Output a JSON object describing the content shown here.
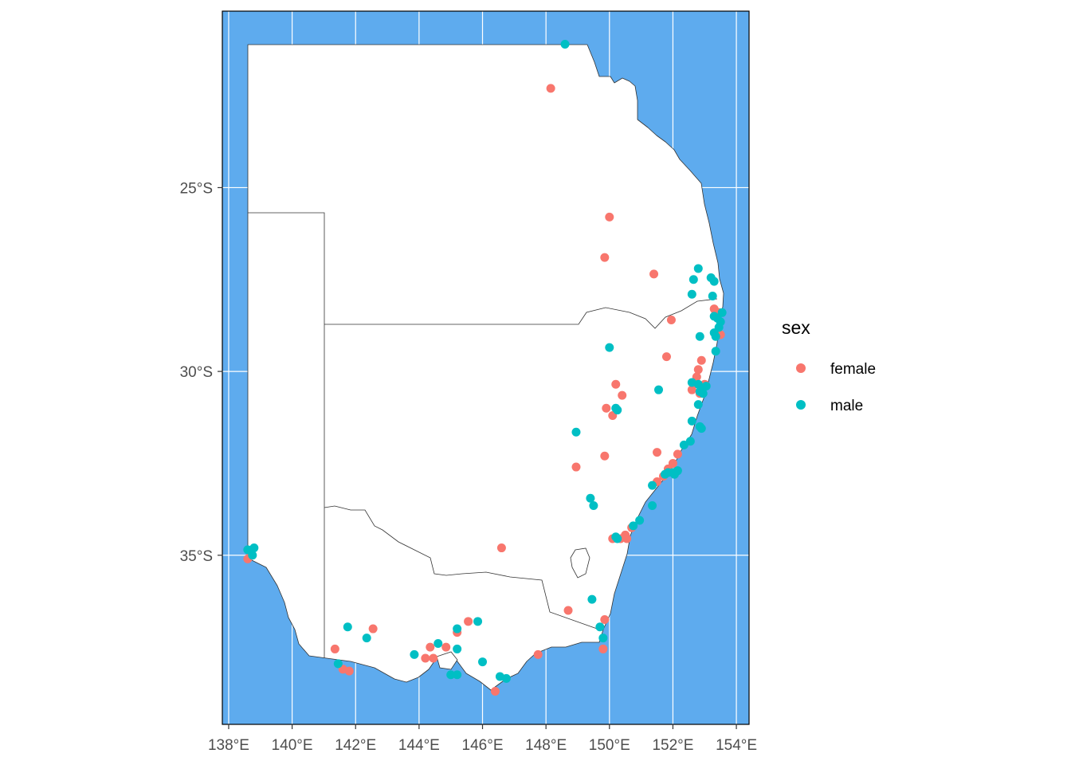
{
  "chart_data": {
    "type": "scatter",
    "subtype": "map",
    "region": "south-east Australia",
    "xlim": [
      137.8,
      154.4
    ],
    "ylim": [
      -39.6,
      -20.2
    ],
    "x_ticks": [
      {
        "value": 138,
        "label": "138°E"
      },
      {
        "value": 140,
        "label": "140°E"
      },
      {
        "value": 142,
        "label": "142°E"
      },
      {
        "value": 144,
        "label": "144°E"
      },
      {
        "value": 146,
        "label": "146°E"
      },
      {
        "value": 148,
        "label": "148°E"
      },
      {
        "value": 150,
        "label": "150°E"
      },
      {
        "value": 152,
        "label": "152°E"
      },
      {
        "value": 154,
        "label": "154°E"
      }
    ],
    "y_ticks": [
      {
        "value": -25,
        "label": "25°S"
      },
      {
        "value": -30,
        "label": "30°S"
      },
      {
        "value": -35,
        "label": "35°S"
      }
    ],
    "grid": true,
    "ocean_color": "#5eabee",
    "land_color": "#ffffff",
    "legend": {
      "title": "sex",
      "position": "right",
      "entries": [
        {
          "label": "female",
          "color": "#f8766d"
        },
        {
          "label": "male",
          "color": "#00bfc4"
        }
      ]
    },
    "series": [
      {
        "name": "female",
        "color": "#f8766d",
        "points": [
          [
            148.15,
            -22.3
          ],
          [
            150.0,
            -25.8
          ],
          [
            149.85,
            -26.9
          ],
          [
            151.4,
            -27.35
          ],
          [
            151.95,
            -28.6
          ],
          [
            151.8,
            -29.6
          ],
          [
            152.9,
            -29.7
          ],
          [
            152.8,
            -29.95
          ],
          [
            152.75,
            -30.15
          ],
          [
            150.2,
            -30.35
          ],
          [
            150.4,
            -30.65
          ],
          [
            149.9,
            -31.0
          ],
          [
            150.1,
            -31.2
          ],
          [
            152.6,
            -30.5
          ],
          [
            153.0,
            -30.35
          ],
          [
            152.85,
            -30.6
          ],
          [
            153.3,
            -28.3
          ],
          [
            153.45,
            -28.4
          ],
          [
            153.5,
            -29.0
          ],
          [
            151.5,
            -32.2
          ],
          [
            152.15,
            -32.25
          ],
          [
            152.0,
            -32.5
          ],
          [
            151.85,
            -32.65
          ],
          [
            151.7,
            -32.85
          ],
          [
            151.5,
            -33.0
          ],
          [
            149.85,
            -32.3
          ],
          [
            148.95,
            -32.6
          ],
          [
            150.7,
            -34.25
          ],
          [
            150.5,
            -34.45
          ],
          [
            150.35,
            -34.55
          ],
          [
            150.55,
            -34.55
          ],
          [
            150.1,
            -34.55
          ],
          [
            146.6,
            -34.8
          ],
          [
            148.7,
            -36.5
          ],
          [
            149.85,
            -36.75
          ],
          [
            149.8,
            -37.55
          ],
          [
            141.35,
            -37.55
          ],
          [
            141.6,
            -38.1
          ],
          [
            141.8,
            -38.15
          ],
          [
            142.55,
            -37.0
          ],
          [
            144.35,
            -37.5
          ],
          [
            144.85,
            -37.5
          ],
          [
            145.2,
            -37.1
          ],
          [
            145.55,
            -36.8
          ],
          [
            144.2,
            -37.8
          ],
          [
            144.45,
            -37.8
          ],
          [
            147.75,
            -37.7
          ],
          [
            146.4,
            -38.7
          ],
          [
            138.6,
            -35.1
          ],
          [
            138.7,
            -34.95
          ]
        ]
      },
      {
        "name": "male",
        "color": "#00bfc4",
        "points": [
          [
            148.6,
            -21.1
          ],
          [
            152.8,
            -27.2
          ],
          [
            152.65,
            -27.5
          ],
          [
            153.2,
            -27.45
          ],
          [
            153.3,
            -27.55
          ],
          [
            152.6,
            -27.9
          ],
          [
            153.25,
            -27.95
          ],
          [
            153.3,
            -28.5
          ],
          [
            153.4,
            -28.55
          ],
          [
            153.5,
            -28.65
          ],
          [
            153.55,
            -28.4
          ],
          [
            153.45,
            -28.8
          ],
          [
            153.3,
            -28.95
          ],
          [
            153.35,
            -29.05
          ],
          [
            152.85,
            -29.05
          ],
          [
            153.35,
            -29.45
          ],
          [
            150.0,
            -29.35
          ],
          [
            152.6,
            -30.3
          ],
          [
            152.8,
            -30.35
          ],
          [
            152.95,
            -30.45
          ],
          [
            153.05,
            -30.4
          ],
          [
            152.85,
            -30.55
          ],
          [
            152.95,
            -30.6
          ],
          [
            151.55,
            -30.5
          ],
          [
            152.8,
            -30.9
          ],
          [
            150.2,
            -31.0
          ],
          [
            150.25,
            -31.05
          ],
          [
            148.95,
            -31.65
          ],
          [
            152.6,
            -31.35
          ],
          [
            152.85,
            -31.5
          ],
          [
            152.9,
            -31.55
          ],
          [
            152.55,
            -31.9
          ],
          [
            152.35,
            -32.0
          ],
          [
            152.15,
            -32.7
          ],
          [
            152.0,
            -32.75
          ],
          [
            151.85,
            -32.75
          ],
          [
            151.75,
            -32.8
          ],
          [
            152.05,
            -32.8
          ],
          [
            151.35,
            -33.1
          ],
          [
            151.35,
            -33.65
          ],
          [
            149.4,
            -33.45
          ],
          [
            149.5,
            -33.65
          ],
          [
            150.95,
            -34.05
          ],
          [
            150.75,
            -34.2
          ],
          [
            150.2,
            -34.5
          ],
          [
            150.25,
            -34.55
          ],
          [
            149.45,
            -36.2
          ],
          [
            149.7,
            -36.95
          ],
          [
            149.8,
            -37.25
          ],
          [
            141.75,
            -36.95
          ],
          [
            142.35,
            -37.25
          ],
          [
            141.45,
            -37.95
          ],
          [
            143.85,
            -37.7
          ],
          [
            144.6,
            -37.4
          ],
          [
            145.2,
            -37.0
          ],
          [
            145.85,
            -36.8
          ],
          [
            145.2,
            -37.55
          ],
          [
            146.0,
            -37.9
          ],
          [
            145.0,
            -38.25
          ],
          [
            145.2,
            -38.25
          ],
          [
            146.55,
            -38.3
          ],
          [
            146.75,
            -38.35
          ],
          [
            138.6,
            -34.85
          ],
          [
            138.8,
            -34.8
          ],
          [
            138.75,
            -35.0
          ]
        ]
      }
    ]
  }
}
